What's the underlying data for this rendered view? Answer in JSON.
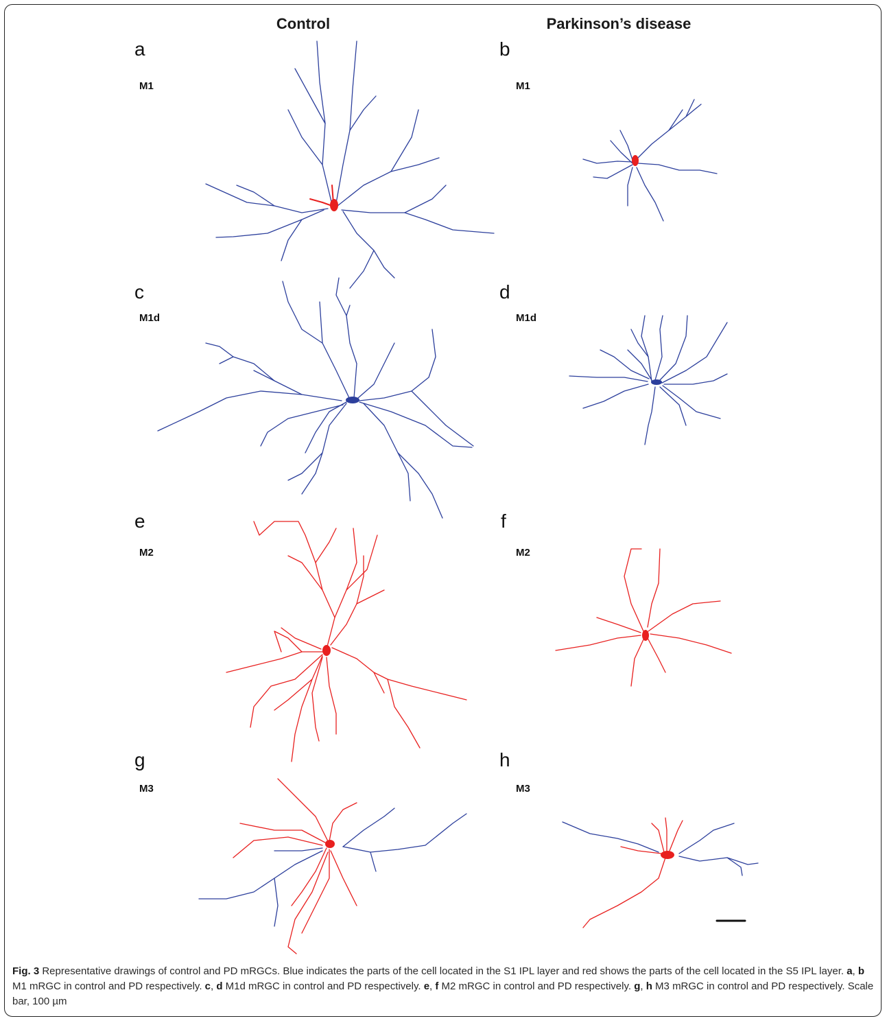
{
  "columns": {
    "left": "Control",
    "right": "Parkinson’s disease"
  },
  "panels": [
    {
      "letter": "a",
      "type": "M1"
    },
    {
      "letter": "b",
      "type": "M1"
    },
    {
      "letter": "c",
      "type": "M1d"
    },
    {
      "letter": "d",
      "type": "M1d"
    },
    {
      "letter": "e",
      "type": "M2"
    },
    {
      "letter": "f",
      "type": "M2"
    },
    {
      "letter": "g",
      "type": "M3"
    },
    {
      "letter": "h",
      "type": "M3"
    }
  ],
  "colors": {
    "s1_blue": "#2c3f9c",
    "s5_red": "#e8201f",
    "frame": "#222222"
  },
  "caption": {
    "fig_label": "Fig. 3",
    "text_1": " Representative drawings of control and PD mRGCs. Blue indicates the parts of the cell located in the S1 IPL layer and red shows the parts of the cell located in the S5 IPL layer. ",
    "ref_a": "a",
    "sep_1": ", ",
    "ref_b": "b",
    "text_2": " M1 mRGC in control and PD respectively. ",
    "ref_c": "c",
    "sep_2": ", ",
    "ref_d": "d",
    "text_3": " M1d mRGC in control and PD respectively. ",
    "ref_e": "e",
    "sep_3": ", ",
    "ref_f": "f",
    "text_4": " M2 mRGC in control and PD respectively. ",
    "ref_g": "g",
    "sep_4": ", ",
    "ref_h": "h",
    "text_5": " M3 mRGC in control and PD respectively. Scale bar, 100 µm"
  }
}
